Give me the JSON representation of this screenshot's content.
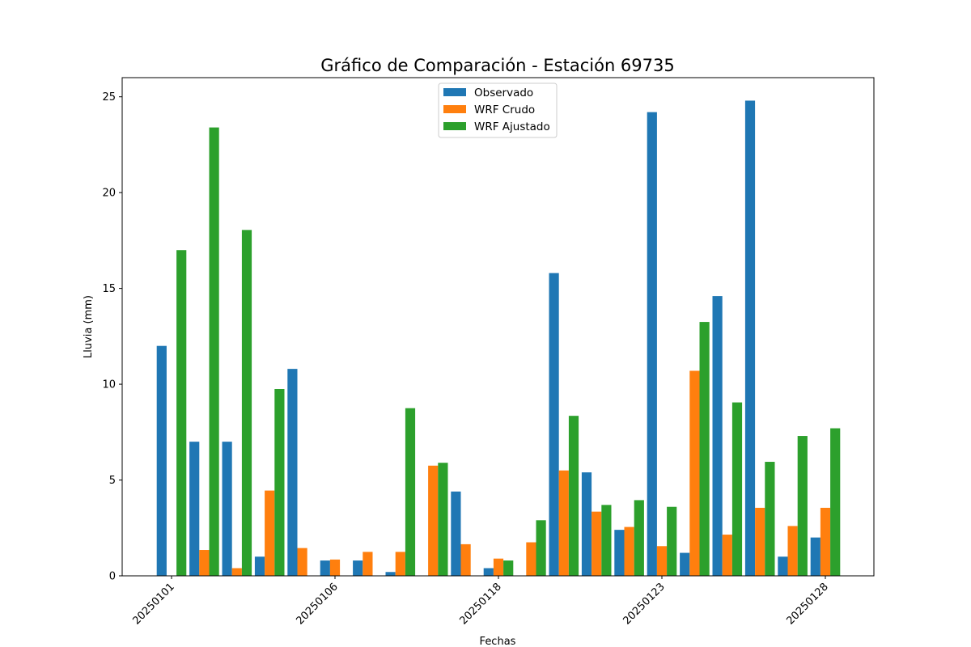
{
  "chart_data": {
    "type": "bar",
    "title": "Gráfico de Comparación - Estación 69735",
    "xlabel": "Fechas",
    "ylabel": "Lluvia (mm)",
    "ylim": [
      0,
      26
    ],
    "yticks": [
      0,
      5,
      10,
      15,
      20,
      25
    ],
    "xtick_labels": [
      {
        "index": 0,
        "label": "20250101"
      },
      {
        "index": 5,
        "label": "20250106"
      },
      {
        "index": 10,
        "label": "20250118"
      },
      {
        "index": 15,
        "label": "20250123"
      },
      {
        "index": 20,
        "label": "20250128"
      }
    ],
    "grid": false,
    "legend_position": "upper center",
    "series": [
      {
        "name": "Observado",
        "color": "#1f77b4",
        "values": [
          12.0,
          7.0,
          7.0,
          1.0,
          10.8,
          0.8,
          0.8,
          0.2,
          0.0,
          4.4,
          0.4,
          0.0,
          15.8,
          5.4,
          2.4,
          24.2,
          1.2,
          14.6,
          24.8,
          1.0,
          2.0
        ]
      },
      {
        "name": "WRF Crudo",
        "color": "#ff7f0e",
        "values": [
          0.0,
          1.35,
          0.4,
          4.45,
          1.45,
          0.85,
          1.25,
          1.25,
          5.75,
          1.65,
          0.9,
          1.75,
          5.5,
          3.35,
          2.55,
          1.55,
          10.7,
          2.15,
          3.55,
          2.6,
          3.55
        ]
      },
      {
        "name": "WRF Ajustado",
        "color": "#2ca02c",
        "values": [
          17.0,
          23.4,
          18.05,
          9.75,
          0.0,
          0.0,
          0.0,
          8.75,
          5.9,
          0.0,
          0.8,
          2.9,
          8.35,
          3.7,
          3.95,
          3.6,
          13.25,
          9.05,
          5.95,
          7.3,
          7.7
        ]
      }
    ]
  }
}
